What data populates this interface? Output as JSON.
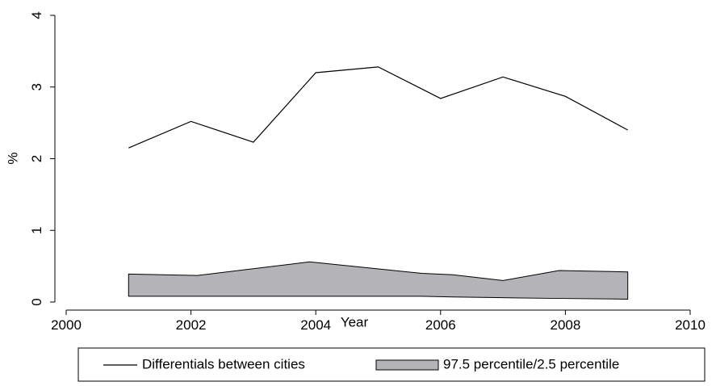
{
  "chart_data": {
    "type": "line",
    "x_label": "Year",
    "y_label": "%",
    "xlim": [
      2000,
      2010
    ],
    "xticks": [
      2000,
      2002,
      2004,
      2006,
      2008,
      2010
    ],
    "ylim": [
      0,
      4
    ],
    "yticks": [
      0,
      1,
      2,
      3,
      4
    ],
    "series": [
      {
        "name": "Differentials between cities",
        "type": "line",
        "color": "#000000",
        "x": [
          2001,
          2002,
          2003,
          2004,
          2005,
          2006,
          2007,
          2008,
          2009
        ],
        "values": [
          2.15,
          2.52,
          2.23,
          3.2,
          3.28,
          2.84,
          3.14,
          2.87,
          2.4
        ]
      },
      {
        "name": "97.5 percentile/2.5 percentile",
        "type": "area",
        "color": "#b3b3b8",
        "x": [
          2001,
          2002.1,
          2003.9,
          2005.7,
          2006.2,
          2007,
          2007.9,
          2009
        ],
        "upper": [
          0.39,
          0.37,
          0.56,
          0.4,
          0.38,
          0.3,
          0.44,
          0.42
        ],
        "lower": [
          0.08,
          0.08,
          0.08,
          0.08,
          0.07,
          0.06,
          0.05,
          0.04
        ]
      }
    ]
  }
}
